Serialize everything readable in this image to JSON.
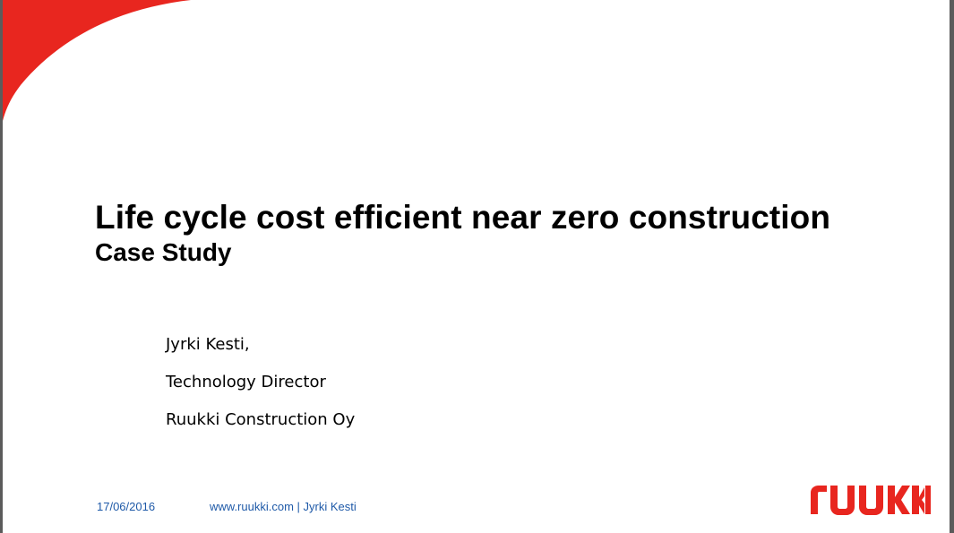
{
  "slide": {
    "title": "Life cycle cost efficient near zero construction",
    "subtitle": "Case Study",
    "presenter": {
      "name": "Jyrki Kesti,",
      "role": "Technology Director",
      "company": "Ruukki Construction Oy"
    },
    "footer": {
      "date": "17/06/2016",
      "info": "www.ruukki.com | Jyrki Kesti"
    },
    "logo": {
      "text": "ruukki",
      "icon": "ruukki-logo"
    }
  },
  "colors": {
    "accent_red": "#e8261f",
    "footer_blue": "#1f5aa8",
    "viewer_background": "#5b5b5b"
  }
}
